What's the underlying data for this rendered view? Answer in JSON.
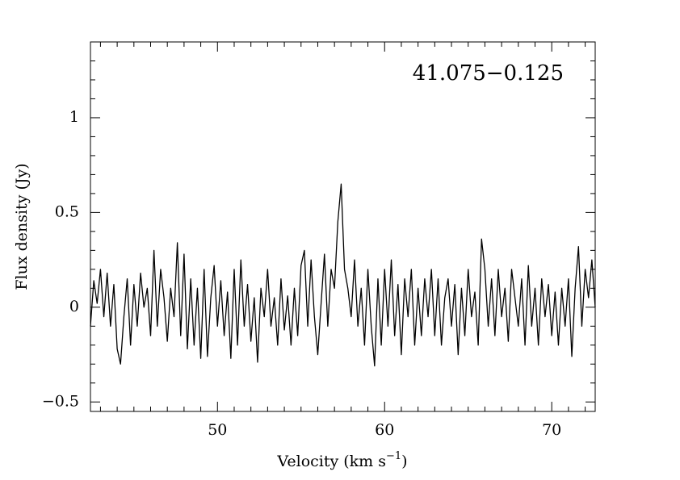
{
  "chart_data": {
    "type": "line",
    "annotation": "41.075−0.125",
    "xlabel": [
      "Velocity (km s",
      "−1",
      ")"
    ],
    "ylabel": "Flux density (Jy)",
    "color": "#000000",
    "xlim": [
      42.4,
      72.6
    ],
    "ylim": [
      -0.55,
      1.4
    ],
    "xticks": [
      50,
      60,
      70
    ],
    "yticks": [
      {
        "value": -0.5,
        "label": "−0.5"
      },
      0,
      0.5,
      1
    ],
    "xminorticks": [
      43,
      44,
      45,
      46,
      47,
      48,
      49,
      51,
      52,
      53,
      54,
      55,
      56,
      57,
      58,
      59,
      61,
      62,
      63,
      64,
      65,
      66,
      67,
      68,
      69,
      71,
      72
    ],
    "yminorticks": [
      -0.4,
      -0.3,
      -0.2,
      -0.1,
      0.1,
      0.2,
      0.3,
      0.4,
      0.6,
      0.7,
      0.8,
      0.9,
      1.1,
      1.2,
      1.3
    ],
    "x": [
      42.4,
      42.6,
      42.8,
      43.0,
      43.2,
      43.4,
      43.6,
      43.8,
      44.0,
      44.2,
      44.4,
      44.6,
      44.8,
      45.0,
      45.2,
      45.4,
      45.6,
      45.8,
      46.0,
      46.2,
      46.4,
      46.6,
      46.8,
      47.0,
      47.2,
      47.4,
      47.6,
      47.8,
      48.0,
      48.2,
      48.4,
      48.6,
      48.8,
      49.0,
      49.2,
      49.4,
      49.6,
      49.8,
      50.0,
      50.2,
      50.4,
      50.6,
      50.8,
      51.0,
      51.2,
      51.4,
      51.6,
      51.8,
      52.0,
      52.2,
      52.4,
      52.6,
      52.8,
      53.0,
      53.2,
      53.4,
      53.6,
      53.8,
      54.0,
      54.2,
      54.4,
      54.6,
      54.8,
      55.0,
      55.2,
      55.4,
      55.6,
      55.8,
      56.0,
      56.2,
      56.4,
      56.6,
      56.8,
      57.0,
      57.2,
      57.4,
      57.6,
      57.8,
      58.0,
      58.2,
      58.4,
      58.6,
      58.8,
      59.0,
      59.2,
      59.4,
      59.6,
      59.8,
      60.0,
      60.2,
      60.4,
      60.6,
      60.8,
      61.0,
      61.2,
      61.4,
      61.6,
      61.8,
      62.0,
      62.2,
      62.4,
      62.6,
      62.8,
      63.0,
      63.2,
      63.4,
      63.6,
      63.8,
      64.0,
      64.2,
      64.4,
      64.6,
      64.8,
      65.0,
      65.2,
      65.4,
      65.6,
      65.8,
      66.0,
      66.2,
      66.4,
      66.6,
      66.8,
      67.0,
      67.2,
      67.4,
      67.6,
      67.8,
      68.0,
      68.2,
      68.4,
      68.6,
      68.8,
      69.0,
      69.2,
      69.4,
      69.6,
      69.8,
      70.0,
      70.2,
      70.4,
      70.6,
      70.8,
      71.0,
      71.2,
      71.4,
      71.6,
      71.8,
      72.0,
      72.2,
      72.4,
      72.6
    ],
    "values": [
      -0.1,
      0.14,
      0.02,
      0.2,
      -0.05,
      0.18,
      -0.1,
      0.12,
      -0.22,
      -0.3,
      -0.05,
      0.15,
      -0.2,
      0.12,
      -0.1,
      0.18,
      0.0,
      0.1,
      -0.15,
      0.3,
      -0.1,
      0.2,
      0.05,
      -0.18,
      0.1,
      -0.05,
      0.34,
      -0.15,
      0.28,
      -0.22,
      0.15,
      -0.2,
      0.1,
      -0.27,
      0.2,
      -0.26,
      0.05,
      0.22,
      -0.1,
      0.14,
      -0.15,
      0.08,
      -0.27,
      0.2,
      -0.2,
      0.25,
      -0.1,
      0.12,
      -0.18,
      0.05,
      -0.29,
      0.1,
      -0.05,
      0.2,
      -0.1,
      0.05,
      -0.2,
      0.15,
      -0.12,
      0.06,
      -0.2,
      0.1,
      -0.15,
      0.22,
      0.3,
      -0.1,
      0.25,
      -0.05,
      -0.25,
      0.02,
      0.28,
      -0.1,
      0.2,
      0.1,
      0.45,
      0.65,
      0.2,
      0.1,
      -0.05,
      0.25,
      -0.1,
      0.1,
      -0.2,
      0.2,
      -0.1,
      -0.31,
      0.15,
      -0.2,
      0.2,
      -0.1,
      0.25,
      -0.15,
      0.12,
      -0.25,
      0.15,
      -0.05,
      0.2,
      -0.2,
      0.1,
      -0.15,
      0.15,
      -0.05,
      0.2,
      -0.15,
      0.15,
      -0.2,
      0.05,
      0.15,
      -0.1,
      0.12,
      -0.25,
      0.1,
      -0.15,
      0.2,
      -0.05,
      0.08,
      -0.2,
      0.36,
      0.2,
      -0.1,
      0.15,
      -0.15,
      0.2,
      -0.05,
      0.1,
      -0.18,
      0.2,
      0.05,
      -0.1,
      0.15,
      -0.2,
      0.22,
      -0.1,
      0.1,
      -0.2,
      0.15,
      -0.05,
      0.12,
      -0.15,
      0.08,
      -0.2,
      0.1,
      -0.1,
      0.15,
      -0.26,
      0.1,
      0.32,
      -0.1,
      0.2,
      0.05,
      0.25,
      0.0
    ]
  }
}
